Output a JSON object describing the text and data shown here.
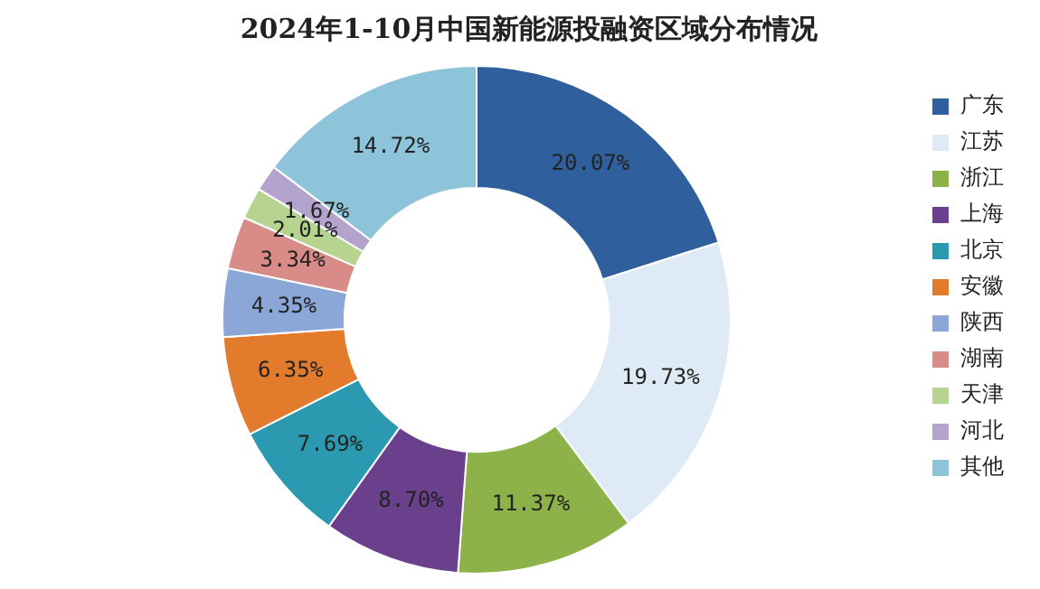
{
  "chart_data": {
    "type": "donut",
    "title": "2024年1-10月中国新能源投融资区域分布情况",
    "categories": [
      "广东",
      "江苏",
      "浙江",
      "上海",
      "北京",
      "安徽",
      "陕西",
      "湖南",
      "天津",
      "河北",
      "其他"
    ],
    "values": [
      20.07,
      19.73,
      11.37,
      8.7,
      7.69,
      6.35,
      4.35,
      3.34,
      2.01,
      1.67,
      14.72
    ],
    "value_labels": [
      "20.07%",
      "19.73%",
      "11.37%",
      "8.70%",
      "7.69%",
      "6.35%",
      "4.35%",
      "3.34%",
      "2.01%",
      "1.67%",
      "14.72%"
    ],
    "colors": [
      "#2f5f9c",
      "#deebf7",
      "#8eb24a",
      "#6a3f8c",
      "#2b9ab0",
      "#e27c2c",
      "#8ba7d8",
      "#d98b87",
      "#b6d48f",
      "#b3a3cd",
      "#8ec4da"
    ],
    "legend": "right"
  }
}
